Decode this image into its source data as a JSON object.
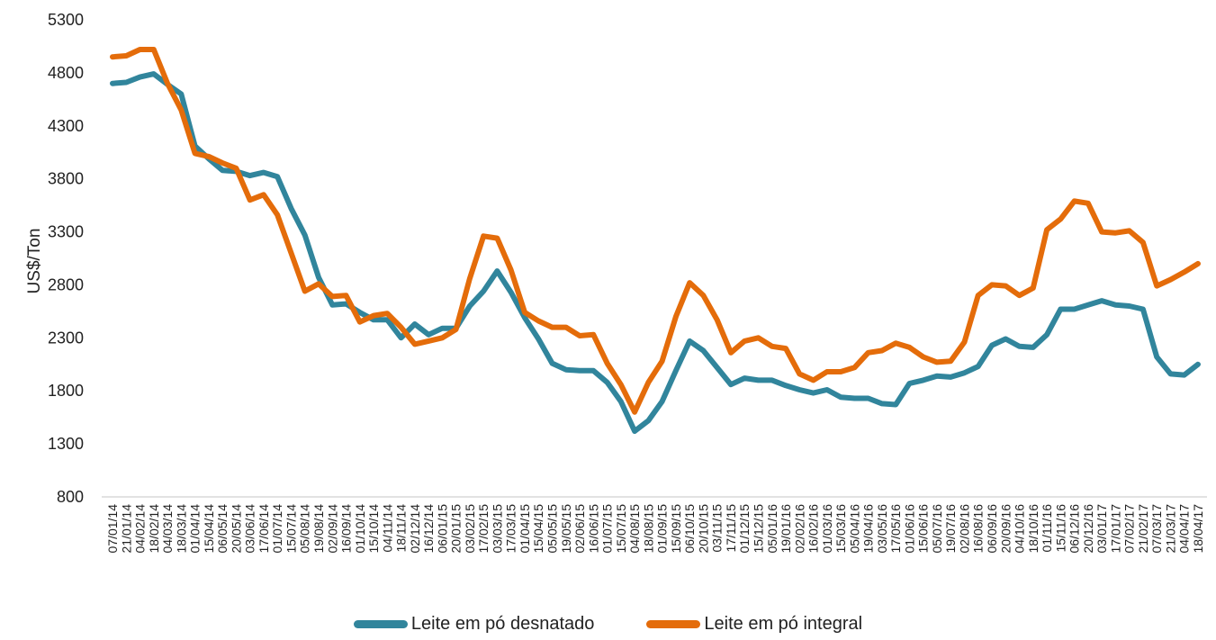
{
  "chart_data": {
    "type": "line",
    "title": "",
    "xlabel": "",
    "ylabel": "US$/Ton",
    "ylim": [
      800,
      5300
    ],
    "yticks": [
      800,
      1300,
      1800,
      2300,
      2800,
      3300,
      3800,
      4300,
      4800,
      5300
    ],
    "grid": false,
    "legend_position": "bottom",
    "x": [
      "07/01/14",
      "21/01/14",
      "04/02/14",
      "18/02/14",
      "04/03/14",
      "18/03/14",
      "01/04/14",
      "15/04/14",
      "06/05/14",
      "20/05/14",
      "03/06/14",
      "17/06/14",
      "01/07/14",
      "15/07/14",
      "05/08/14",
      "19/08/14",
      "02/09/14",
      "16/09/14",
      "01/10/14",
      "15/10/14",
      "04/11/14",
      "18/11/14",
      "02/12/14",
      "16/12/14",
      "06/01/15",
      "20/01/15",
      "03/02/15",
      "17/02/15",
      "03/03/15",
      "17/03/15",
      "01/04/15",
      "15/04/15",
      "05/05/15",
      "19/05/15",
      "02/06/15",
      "16/06/15",
      "01/07/15",
      "15/07/15",
      "04/08/15",
      "18/08/15",
      "01/09/15",
      "15/09/15",
      "06/10/15",
      "20/10/15",
      "03/11/15",
      "17/11/15",
      "01/12/15",
      "15/12/15",
      "05/01/16",
      "19/01/16",
      "02/02/16",
      "16/02/16",
      "01/03/16",
      "15/03/16",
      "05/04/16",
      "19/04/16",
      "03/05/16",
      "17/05/16",
      "01/06/16",
      "15/06/16",
      "05/07/16",
      "19/07/16",
      "02/08/16",
      "16/08/16",
      "06/09/16",
      "20/09/16",
      "04/10/16",
      "18/10/16",
      "01/11/16",
      "15/11/16",
      "06/12/16",
      "20/12/16",
      "03/01/17",
      "17/01/17",
      "07/02/17",
      "21/02/17",
      "07/03/17",
      "21/03/17",
      "04/04/17",
      "18/04/17"
    ],
    "series": [
      {
        "name": "Leite em pó desnatado",
        "color": "#31859C",
        "values": [
          4700,
          4710,
          4760,
          4790,
          4690,
          4600,
          4110,
          3990,
          3880,
          3870,
          3830,
          3860,
          3820,
          3520,
          3270,
          2870,
          2610,
          2620,
          2540,
          2470,
          2470,
          2300,
          2430,
          2330,
          2390,
          2390,
          2600,
          2740,
          2930,
          2730,
          2490,
          2290,
          2060,
          2000,
          1990,
          1990,
          1880,
          1700,
          1420,
          1520,
          1700,
          1990,
          2270,
          2180,
          2020,
          1860,
          1920,
          1900,
          1900,
          1850,
          1810,
          1780,
          1810,
          1740,
          1730,
          1730,
          1680,
          1670,
          1870,
          1900,
          1940,
          1930,
          1970,
          2030,
          2230,
          2290,
          2220,
          2210,
          2330,
          2570,
          2570,
          2610,
          2650,
          2610,
          2600,
          2570,
          2120,
          1960,
          1950,
          2050
        ]
      },
      {
        "name": "Leite em pó integral",
        "color": "#E46C0A",
        "values": [
          4950,
          4960,
          5020,
          5020,
          4700,
          4450,
          4040,
          4010,
          3950,
          3900,
          3600,
          3650,
          3460,
          3100,
          2740,
          2810,
          2690,
          2700,
          2450,
          2510,
          2530,
          2400,
          2240,
          2270,
          2300,
          2380,
          2860,
          3260,
          3240,
          2940,
          2540,
          2460,
          2400,
          2400,
          2320,
          2330,
          2060,
          1860,
          1600,
          1880,
          2080,
          2500,
          2820,
          2700,
          2470,
          2160,
          2270,
          2300,
          2220,
          2200,
          1960,
          1900,
          1980,
          1980,
          2020,
          2160,
          2180,
          2250,
          2210,
          2120,
          2070,
          2080,
          2260,
          2700,
          2800,
          2790,
          2700,
          2770,
          3320,
          3420,
          3590,
          3570,
          3300,
          3290,
          3310,
          3200,
          2790,
          2850,
          2920,
          3000
        ]
      }
    ]
  }
}
